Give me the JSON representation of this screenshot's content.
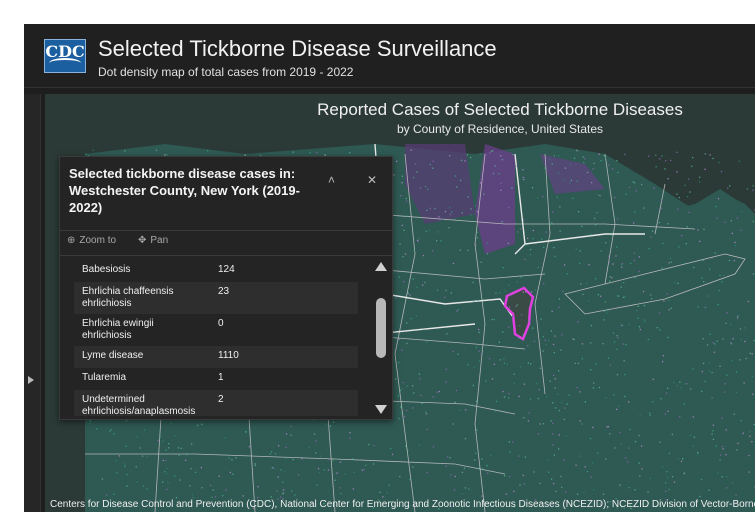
{
  "header": {
    "logo_text": "CDC",
    "title": "Selected Tickborne Disease Surveillance",
    "subtitle": "Dot density map of total cases from 2019 - 2022"
  },
  "map": {
    "title": "Reported Cases of Selected Tickborne Diseases",
    "subtitle": "by County of Residence, United States",
    "attribution": "Centers for Disease Control and Prevention (CDC), National Center for Emerging and Zoonotic Infectious Diseases (NCEZID); NCEZID Division of Vector-Borne Diseases",
    "colors": {
      "land": "#2f5953",
      "water": "#22302e",
      "highlight": "#d030d0",
      "purple_region": "#6b3f8a"
    }
  },
  "popup": {
    "title": "Selected tickborne disease cases in: Westchester County, New York (2019-2022)",
    "collapse_icon": "chevron-up-icon",
    "close_icon": "close-icon",
    "actions": [
      {
        "label": "Zoom to",
        "icon": "zoom-in-icon"
      },
      {
        "label": "Pan",
        "icon": "pan-icon"
      }
    ],
    "rows": [
      {
        "disease": "Babesiosis",
        "cases": "124"
      },
      {
        "disease": "Ehrlichia chaffeensis ehrlichiosis",
        "cases": "23"
      },
      {
        "disease": "Ehrlichia ewingii ehrlichiosis",
        "cases": "0"
      },
      {
        "disease": "Lyme disease",
        "cases": "1110"
      },
      {
        "disease": "Tularemia",
        "cases": "1"
      },
      {
        "disease": "Undetermined ehrlichiosis/anaplasmosis",
        "cases": "2"
      }
    ]
  }
}
